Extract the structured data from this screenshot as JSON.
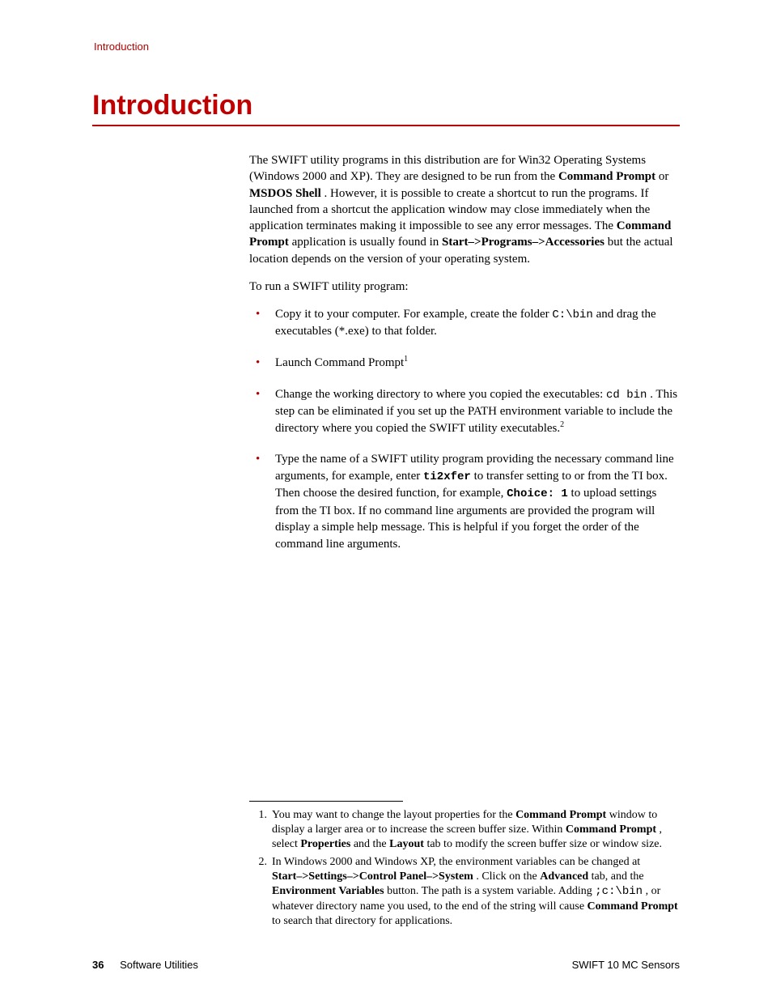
{
  "colors": {
    "accent_red": "#c00000",
    "rule_red": "#b40000",
    "header_red": "#b30000",
    "text": "#000000",
    "background": "#ffffff"
  },
  "typography": {
    "body_family": "Times New Roman",
    "heading_family": "Arial",
    "mono_family": "Courier New",
    "body_size_pt": 11,
    "heading_size_pt": 26,
    "footnote_size_pt": 10
  },
  "running_header": "Introduction",
  "title": "Introduction",
  "intro": {
    "p1_a": "The SWIFT utility programs in this distribution are for Win32 Operating Systems (Windows 2000 and XP). They are designed to be run from the ",
    "p1_b1": "Command Prompt",
    "p1_or": " or ",
    "p1_b2": "MSDOS Shell",
    "p1_c": ". However, it is possible to create a shortcut to run the programs. If launched from a shortcut the application window may close immediately when the application terminates making it impossible to see any error messages. The ",
    "p1_b3": "Command Prompt",
    "p1_d": " application is usually found in ",
    "p1_b4": "Start–>Programs–>Accessories",
    "p1_e": " but the actual location depends on the version of your operating system.",
    "p2": "To run a SWIFT utility program:"
  },
  "bullets": {
    "b1_a": "Copy it to your computer. For example, create the folder ",
    "b1_code": "C:\\bin",
    "b1_b": " and drag the executables (*.exe) to that folder.",
    "b2_a": "Launch ",
    "b2_bold": "Command Prompt",
    "b2_sup": "1",
    "b3_a": "Change the working directory to where you copied the executables: ",
    "b3_code": "cd bin",
    "b3_b": ". This step can be eliminated if you set up the ",
    "b3_bold": "PATH",
    "b3_c": " environment variable to include the directory where you copied the SWIFT utility executables.",
    "b3_sup": "2",
    "b4_a": "Type the name of a SWIFT utility program providing the necessary command line arguments, for example, enter ",
    "b4_code1": "ti2xfer",
    "b4_b": " to transfer setting to or from the TI box. Then choose the desired function, for example, ",
    "b4_code2": "Choice: 1",
    "b4_c": "  to upload settings from the TI box. If no command line arguments are provided the program will display a simple help message. This is helpful if you forget the order of the command line arguments."
  },
  "footnotes": {
    "f1_num": "1.",
    "f1_a": "You may want to change the layout properties for the ",
    "f1_b1": "Command Prompt",
    "f1_b": " window to display a larger area or to increase the screen buffer size. Within ",
    "f1_b2": "Command Prompt",
    "f1_c": ", select ",
    "f1_b3": "Properties",
    "f1_d": " and the ",
    "f1_b4": "Layout",
    "f1_e": " tab to modify the screen buffer size or window size.",
    "f2_num": "2.",
    "f2_a": "In Windows 2000 and Windows XP, the environment variables can be changed at",
    "f2_b1": "Start–>Settings–>Control Panel–>System",
    "f2_b": ". Click on the ",
    "f2_b2": "Advanced",
    "f2_c": " tab, and the ",
    "f2_b3": "Environment Variables",
    "f2_d": " button. The path is a system variable. Adding ",
    "f2_code": ";c:\\bin",
    "f2_e": ", or whatever directory name you used, to the end of the string will cause ",
    "f2_b4": "Command Prompt",
    "f2_f": " to search that directory for applications."
  },
  "footer": {
    "page_number": "36",
    "section": "Software Utilities",
    "doc_title": "SWIFT 10 MC Sensors"
  }
}
